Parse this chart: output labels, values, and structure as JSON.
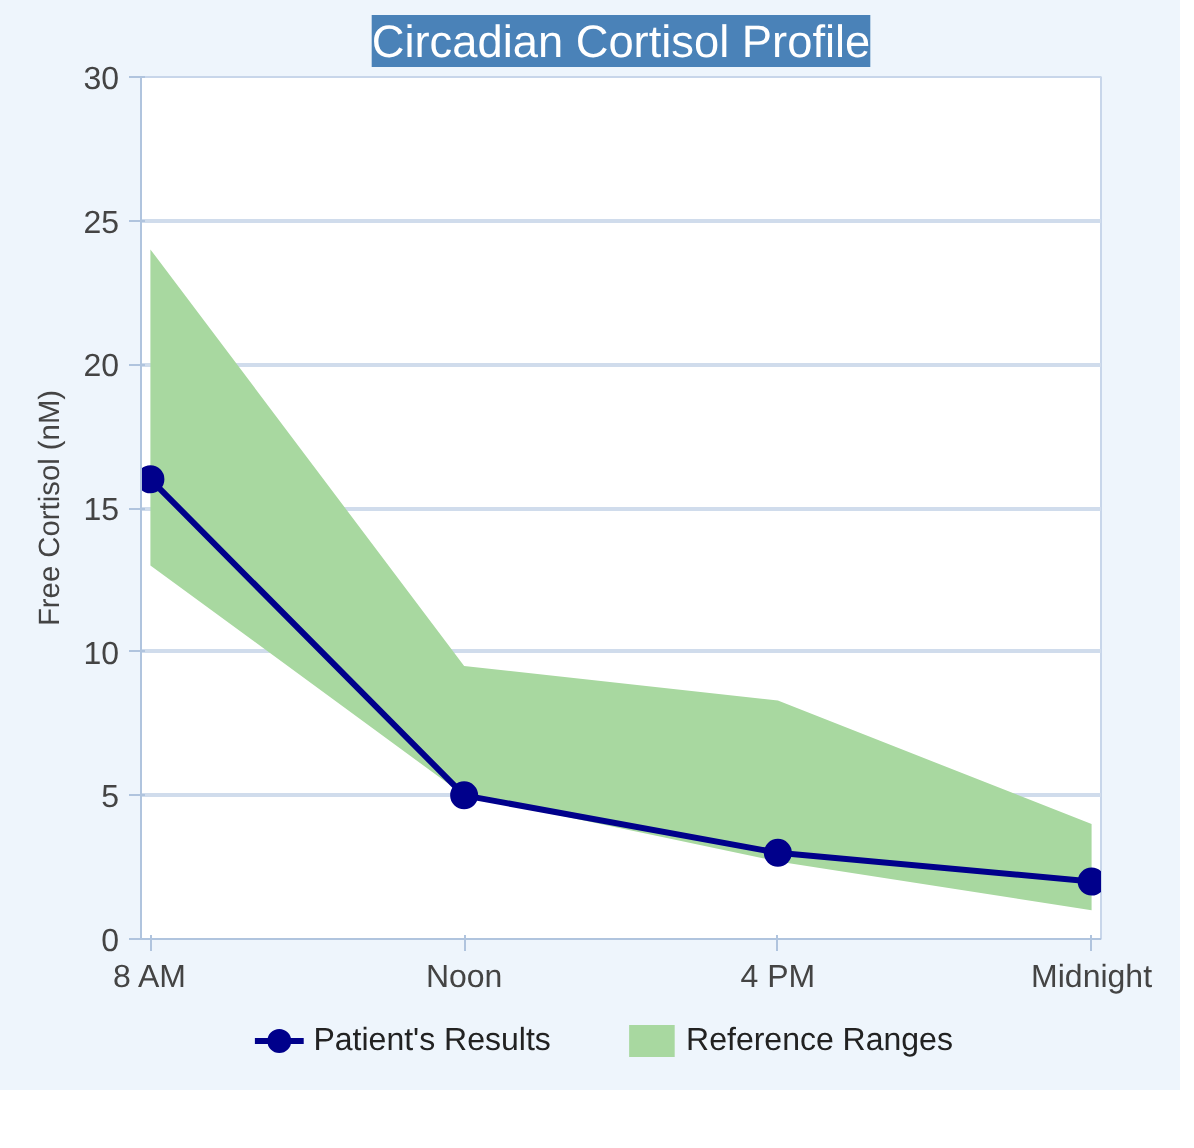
{
  "chart_data": {
    "type": "line",
    "title": "Circadian Cortisol Profile",
    "ylabel": "Free Cortisol (nM)",
    "categories": [
      "8 AM",
      "Noon",
      "4 PM",
      "Midnight"
    ],
    "series": [
      {
        "name": "Patient's Results",
        "color": "#00008b",
        "values": [
          16,
          5,
          3,
          2
        ],
        "marker": "circle"
      },
      {
        "name": "Reference Ranges",
        "color": "#a8d8a0",
        "values": [
          null,
          null,
          null,
          null
        ],
        "lower": [
          13,
          5,
          2.7,
          1
        ],
        "upper": [
          24,
          9.5,
          8.3,
          4
        ]
      }
    ],
    "ylim": [
      0,
      30
    ],
    "yticks": [
      0,
      5,
      10,
      15,
      20,
      25,
      30
    ],
    "grid": "y",
    "legend": "bottom",
    "line_style": "solid"
  }
}
